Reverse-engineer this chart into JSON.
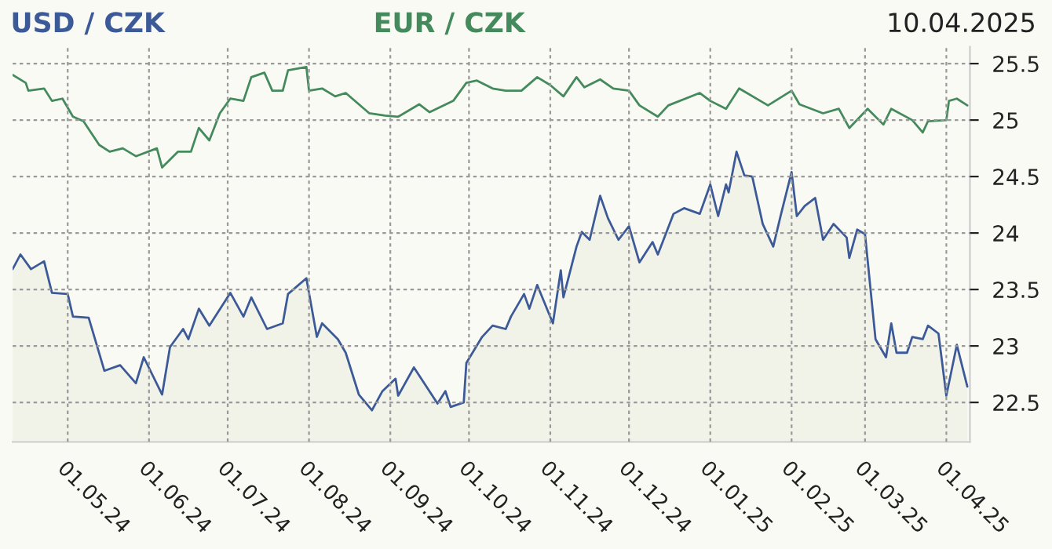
{
  "chart_data": {
    "type": "line",
    "annotations": [
      "10.04.2025"
    ],
    "legend": "top",
    "grid": true,
    "xlim": [
      "2024-04-10",
      "2025-04-10"
    ],
    "xticks": [
      {
        "value": "2024-05-01",
        "label": "01.05.24"
      },
      {
        "value": "2024-06-01",
        "label": "01.06.24"
      },
      {
        "value": "2024-07-01",
        "label": "01.07.24"
      },
      {
        "value": "2024-08-01",
        "label": "01.08.24"
      },
      {
        "value": "2024-09-01",
        "label": "01.09.24"
      },
      {
        "value": "2024-10-01",
        "label": "01.10.24"
      },
      {
        "value": "2024-11-01",
        "label": "01.11.24"
      },
      {
        "value": "2024-12-01",
        "label": "01.12.24"
      },
      {
        "value": "2025-01-01",
        "label": "01.01.25"
      },
      {
        "value": "2025-02-01",
        "label": "01.02.25"
      },
      {
        "value": "2025-03-01",
        "label": "01.03.25"
      },
      {
        "value": "2025-04-01",
        "label": "01.04.25"
      }
    ],
    "ylim": [
      22.15,
      25.65
    ],
    "yticks": [
      22.5,
      23,
      23.5,
      24,
      24.5,
      25,
      25.5
    ],
    "series": [
      {
        "name": "USD / CZK",
        "type": "area",
        "color": "#3d5a98",
        "x": [
          "2024-04-10",
          "2024-04-13",
          "2024-04-17",
          "2024-04-22",
          "2024-04-25",
          "2024-05-01",
          "2024-05-03",
          "2024-05-09",
          "2024-05-15",
          "2024-05-21",
          "2024-05-27",
          "2024-05-30",
          "2024-06-06",
          "2024-06-09",
          "2024-06-14",
          "2024-06-16",
          "2024-06-20",
          "2024-06-24",
          "2024-07-02",
          "2024-07-07",
          "2024-07-10",
          "2024-07-16",
          "2024-07-22",
          "2024-07-24",
          "2024-07-31",
          "2024-08-04",
          "2024-08-06",
          "2024-08-12",
          "2024-08-15",
          "2024-08-20",
          "2024-08-25",
          "2024-08-29",
          "2024-09-03",
          "2024-09-04",
          "2024-09-10",
          "2024-09-19",
          "2024-09-22",
          "2024-09-24",
          "2024-09-29",
          "2024-09-30",
          "2024-10-06",
          "2024-10-10",
          "2024-10-15",
          "2024-10-17",
          "2024-10-22",
          "2024-10-24",
          "2024-10-27",
          "2024-11-02",
          "2024-11-05",
          "2024-11-06",
          "2024-11-11",
          "2024-11-13",
          "2024-11-16",
          "2024-11-20",
          "2024-11-23",
          "2024-11-27",
          "2024-12-01",
          "2024-12-05",
          "2024-12-10",
          "2024-12-12",
          "2024-12-18",
          "2024-12-22",
          "2024-12-28",
          "2025-01-01",
          "2025-01-04",
          "2025-01-07",
          "2025-01-08",
          "2025-01-11",
          "2025-01-14",
          "2025-01-17",
          "2025-01-21",
          "2025-01-25",
          "2025-01-28",
          "2025-02-01",
          "2025-02-03",
          "2025-02-06",
          "2025-02-10",
          "2025-02-13",
          "2025-02-17",
          "2025-02-22",
          "2025-02-23",
          "2025-02-26",
          "2025-03-01",
          "2025-03-05",
          "2025-03-09",
          "2025-03-11",
          "2025-03-13",
          "2025-03-17",
          "2025-03-19",
          "2025-03-23",
          "2025-03-25",
          "2025-03-29",
          "2025-04-01",
          "2025-04-05",
          "2025-04-09"
        ],
        "values": [
          23.68,
          23.81,
          23.68,
          23.75,
          23.47,
          23.46,
          23.26,
          23.25,
          22.78,
          22.83,
          22.67,
          22.9,
          22.57,
          22.99,
          23.15,
          23.06,
          23.33,
          23.18,
          23.47,
          23.26,
          23.43,
          23.15,
          23.2,
          23.46,
          23.6,
          23.08,
          23.2,
          23.06,
          22.94,
          22.57,
          22.43,
          22.6,
          22.71,
          22.56,
          22.81,
          22.49,
          22.6,
          22.46,
          22.5,
          22.85,
          23.08,
          23.18,
          23.15,
          23.26,
          23.46,
          23.33,
          23.54,
          23.2,
          23.67,
          23.43,
          23.88,
          24.01,
          23.94,
          24.33,
          24.13,
          23.94,
          24.06,
          23.74,
          23.92,
          23.81,
          24.17,
          24.22,
          24.17,
          24.43,
          24.15,
          24.43,
          24.36,
          24.72,
          24.51,
          24.5,
          24.08,
          23.88,
          24.17,
          24.54,
          24.15,
          24.24,
          24.31,
          23.94,
          24.08,
          23.96,
          23.78,
          24.03,
          23.99,
          23.06,
          22.9,
          23.2,
          22.94,
          22.94,
          23.08,
          23.06,
          23.18,
          23.11,
          22.56,
          23.01,
          22.64
        ]
      },
      {
        "name": "EUR / CZK",
        "color": "#448a5c",
        "x": [
          "2024-04-10",
          "2024-04-15",
          "2024-04-16",
          "2024-04-22",
          "2024-04-25",
          "2024-04-29",
          "2024-05-03",
          "2024-05-07",
          "2024-05-13",
          "2024-05-17",
          "2024-05-22",
          "2024-05-27",
          "2024-06-04",
          "2024-06-06",
          "2024-06-12",
          "2024-06-17",
          "2024-06-20",
          "2024-06-24",
          "2024-06-28",
          "2024-07-02",
          "2024-07-07",
          "2024-07-10",
          "2024-07-15",
          "2024-07-18",
          "2024-07-22",
          "2024-07-24",
          "2024-07-31",
          "2024-08-01",
          "2024-08-06",
          "2024-08-11",
          "2024-08-15",
          "2024-08-24",
          "2024-08-30",
          "2024-09-04",
          "2024-09-12",
          "2024-09-16",
          "2024-09-25",
          "2024-09-30",
          "2024-10-04",
          "2024-10-10",
          "2024-10-15",
          "2024-10-21",
          "2024-10-27",
          "2024-11-01",
          "2024-11-06",
          "2024-11-11",
          "2024-11-14",
          "2024-11-20",
          "2024-11-25",
          "2024-12-01",
          "2024-12-05",
          "2024-12-12",
          "2024-12-16",
          "2024-12-28",
          "2025-01-01",
          "2025-01-07",
          "2025-01-12",
          "2025-01-23",
          "2025-02-01",
          "2025-02-04",
          "2025-02-13",
          "2025-02-19",
          "2025-02-23",
          "2025-03-02",
          "2025-03-08",
          "2025-03-11",
          "2025-03-19",
          "2025-03-23",
          "2025-03-25",
          "2025-04-01",
          "2025-04-02",
          "2025-04-05",
          "2025-04-09"
        ],
        "values": [
          25.4,
          25.33,
          25.26,
          25.28,
          25.17,
          25.19,
          25.03,
          24.99,
          24.78,
          24.72,
          24.75,
          24.68,
          24.75,
          24.58,
          24.72,
          24.72,
          24.93,
          24.82,
          25.06,
          25.19,
          25.17,
          25.38,
          25.42,
          25.26,
          25.26,
          25.44,
          25.47,
          25.26,
          25.28,
          25.21,
          25.24,
          25.06,
          25.04,
          25.03,
          25.14,
          25.07,
          25.17,
          25.33,
          25.35,
          25.28,
          25.26,
          25.26,
          25.38,
          25.31,
          25.21,
          25.38,
          25.29,
          25.36,
          25.28,
          25.26,
          25.13,
          25.03,
          25.13,
          25.24,
          25.17,
          25.1,
          25.28,
          25.13,
          25.26,
          25.14,
          25.06,
          25.1,
          24.93,
          25.1,
          24.96,
          25.1,
          25.0,
          24.89,
          24.99,
          25.0,
          25.17,
          25.19,
          25.13
        ]
      }
    ]
  }
}
